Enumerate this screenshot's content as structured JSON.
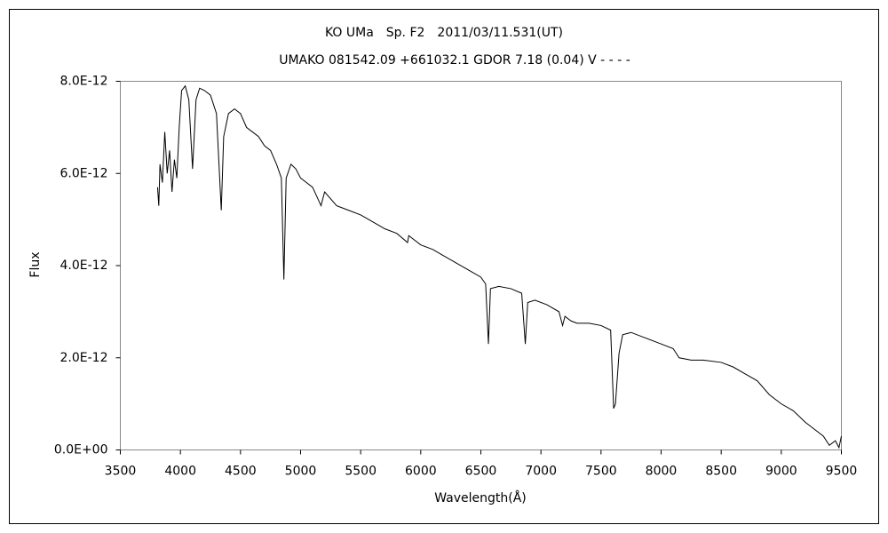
{
  "chart_data": {
    "type": "line",
    "title": "KO UMa　Sp. F2　2011/03/11.531(UT)",
    "subtitle": "UMAKO 081542.09 +661032.1 GDOR 7.18 (0.04) V - - - -",
    "x_label": "Wavelength(Å)",
    "y_label": "Flux",
    "color": "#000000",
    "grid": false,
    "x": [
      3810,
      3820,
      3830,
      3850,
      3870,
      3890,
      3910,
      3930,
      3950,
      3970,
      3990,
      4010,
      4040,
      4070,
      4101,
      4130,
      4160,
      4200,
      4250,
      4300,
      4340,
      4360,
      4400,
      4450,
      4500,
      4550,
      4600,
      4650,
      4700,
      4750,
      4800,
      4840,
      4861,
      4880,
      4920,
      4960,
      5000,
      5050,
      5100,
      5170,
      5200,
      5300,
      5400,
      5500,
      5600,
      5700,
      5800,
      5890,
      5900,
      6000,
      6100,
      6200,
      6300,
      6400,
      6500,
      6540,
      6563,
      6580,
      6650,
      6750,
      6840,
      6870,
      6890,
      6950,
      7050,
      7150,
      7180,
      7200,
      7250,
      7300,
      7400,
      7500,
      7580,
      7605,
      7620,
      7650,
      7680,
      7750,
      7850,
      8000,
      8100,
      8150,
      8250,
      8350,
      8500,
      8600,
      8700,
      8800,
      8900,
      9000,
      9100,
      9200,
      9300,
      9350,
      9400,
      9450,
      9480,
      9500
    ],
    "values": [
      5.7e-12,
      5.3e-12,
      6.2e-12,
      5.8e-12,
      6.9e-12,
      6e-12,
      6.5e-12,
      5.6e-12,
      6.3e-12,
      5.9e-12,
      7e-12,
      7.8e-12,
      7.9e-12,
      7.6e-12,
      6.1e-12,
      7.6e-12,
      7.85e-12,
      7.8e-12,
      7.7e-12,
      7.3e-12,
      5.2e-12,
      6.8e-12,
      7.3e-12,
      7.4e-12,
      7.3e-12,
      7e-12,
      6.9e-12,
      6.8e-12,
      6.6e-12,
      6.5e-12,
      6.2e-12,
      5.9e-12,
      3.7e-12,
      5.9e-12,
      6.2e-12,
      6.1e-12,
      5.9e-12,
      5.8e-12,
      5.7e-12,
      5.3e-12,
      5.6e-12,
      5.3e-12,
      5.2e-12,
      5.1e-12,
      4.95e-12,
      4.8e-12,
      4.7e-12,
      4.5e-12,
      4.65e-12,
      4.45e-12,
      4.35e-12,
      4.2e-12,
      4.05e-12,
      3.9e-12,
      3.75e-12,
      3.6e-12,
      2.3e-12,
      3.5e-12,
      3.55e-12,
      3.5e-12,
      3.4e-12,
      2.3e-12,
      3.2e-12,
      3.25e-12,
      3.15e-12,
      3e-12,
      2.7e-12,
      2.9e-12,
      2.8e-12,
      2.75e-12,
      2.75e-12,
      2.7e-12,
      2.6e-12,
      9e-13,
      1e-12,
      2.1e-12,
      2.5e-12,
      2.55e-12,
      2.45e-12,
      2.3e-12,
      2.2e-12,
      2e-12,
      1.95e-12,
      1.95e-12,
      1.9e-12,
      1.8e-12,
      1.65e-12,
      1.5e-12,
      1.2e-12,
      1e-12,
      8.5e-13,
      6e-13,
      4e-13,
      3e-13,
      1e-13,
      2e-13,
      5e-14,
      3e-13
    ],
    "xlim": [
      3500,
      9500
    ],
    "xticks": [
      3500,
      4000,
      4500,
      5000,
      5500,
      6000,
      6500,
      7000,
      7500,
      8000,
      8500,
      9000,
      9500
    ],
    "ylim": [
      0,
      8e-12
    ],
    "yticks": [
      {
        "value": 0,
        "label": "0.0E+00"
      },
      {
        "value": 2e-12,
        "label": "2.0E-12"
      },
      {
        "value": 4e-12,
        "label": "4.0E-12"
      },
      {
        "value": 6e-12,
        "label": "6.0E-12"
      },
      {
        "value": 8e-12,
        "label": "8.0E-12"
      }
    ]
  }
}
